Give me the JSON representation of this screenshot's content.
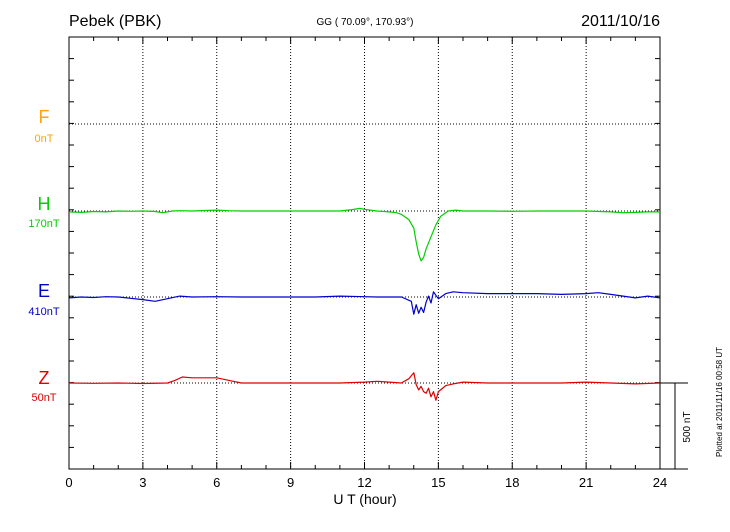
{
  "header": {
    "station": "Pebek (PBK)",
    "coords": "GG ( 70.09°, 170.93°)",
    "date": "2011/10/16"
  },
  "footer": {
    "xlabel": "U T (hour)",
    "scale": "500 nT",
    "plotted": "Plotted at 2011/11/16 00:58 UT"
  },
  "colors": {
    "F": "#ffa500",
    "H": "#00d000",
    "E": "#0000cc",
    "Z": "#dd0000",
    "grid": "#000000"
  },
  "chart_data": {
    "type": "line",
    "xlabel": "U T (hour)",
    "xlim": [
      0,
      24
    ],
    "xticks": [
      0,
      3,
      6,
      9,
      12,
      15,
      18,
      21,
      24
    ],
    "grid": true,
    "scale_bar_nT": 500,
    "series": [
      {
        "name": "F",
        "baseline": "0nT",
        "values_nT": []
      },
      {
        "name": "H",
        "baseline": "170nT",
        "x": [
          0,
          0.5,
          1,
          1.5,
          2,
          2.5,
          3,
          3.5,
          3.8,
          4.2,
          4.5,
          5,
          5.5,
          6,
          6.5,
          7,
          8,
          9,
          10,
          11,
          11.5,
          11.8,
          12,
          12.5,
          13,
          13.3,
          13.5,
          13.8,
          14.0,
          14.1,
          14.2,
          14.3,
          14.4,
          14.5,
          14.7,
          14.9,
          15.1,
          15.4,
          15.7,
          16,
          17,
          18,
          19,
          20,
          21,
          22,
          22.5,
          23,
          23.5,
          24
        ],
        "values_nT": [
          -5,
          -8,
          -3,
          -5,
          0,
          -2,
          0,
          -3,
          -10,
          0,
          2,
          0,
          3,
          5,
          2,
          0,
          0,
          0,
          0,
          0,
          8,
          15,
          10,
          0,
          -5,
          -10,
          -20,
          -50,
          -100,
          -180,
          -250,
          -290,
          -270,
          -220,
          -150,
          -80,
          -30,
          0,
          5,
          0,
          0,
          -2,
          0,
          0,
          0,
          -5,
          -10,
          -8,
          -5,
          -5
        ]
      },
      {
        "name": "E",
        "baseline": "410nT",
        "x": [
          0,
          0.5,
          1,
          1.5,
          2,
          3,
          3.5,
          4,
          4.5,
          5,
          6,
          7,
          8,
          9,
          10,
          11,
          12,
          12.5,
          13,
          13.5,
          13.9,
          14.0,
          14.1,
          14.2,
          14.3,
          14.4,
          14.5,
          14.6,
          14.7,
          14.8,
          14.9,
          15.0,
          15.3,
          15.6,
          16,
          17,
          18,
          19,
          20,
          21,
          21.5,
          22,
          22.5,
          23,
          23.5,
          24
        ],
        "values_nT": [
          -5,
          0,
          -3,
          2,
          0,
          -15,
          -25,
          -10,
          5,
          0,
          2,
          0,
          0,
          0,
          0,
          5,
          2,
          0,
          0,
          0,
          -25,
          -100,
          -45,
          -95,
          -60,
          -90,
          -30,
          5,
          -35,
          30,
          10,
          -10,
          20,
          30,
          25,
          20,
          20,
          20,
          15,
          20,
          25,
          15,
          5,
          -5,
          5,
          -5
        ]
      },
      {
        "name": "Z",
        "baseline": "50nT",
        "x": [
          0,
          1,
          2,
          3,
          4,
          4.3,
          4.6,
          5,
          6,
          6.5,
          7,
          8,
          9,
          10,
          11,
          12,
          12.5,
          13,
          13.5,
          13.8,
          14.0,
          14.1,
          14.2,
          14.3,
          14.4,
          14.5,
          14.6,
          14.7,
          14.8,
          14.9,
          15.0,
          15.3,
          15.6,
          16,
          17,
          18,
          19,
          20,
          21,
          22,
          23,
          24
        ],
        "values_nT": [
          0,
          -2,
          0,
          -3,
          0,
          15,
          35,
          30,
          30,
          15,
          0,
          0,
          0,
          0,
          0,
          5,
          10,
          5,
          0,
          25,
          60,
          -10,
          -40,
          -20,
          -50,
          -60,
          -30,
          -80,
          -50,
          -100,
          -50,
          -15,
          -5,
          5,
          0,
          0,
          0,
          0,
          5,
          0,
          -5,
          0
        ]
      }
    ]
  }
}
